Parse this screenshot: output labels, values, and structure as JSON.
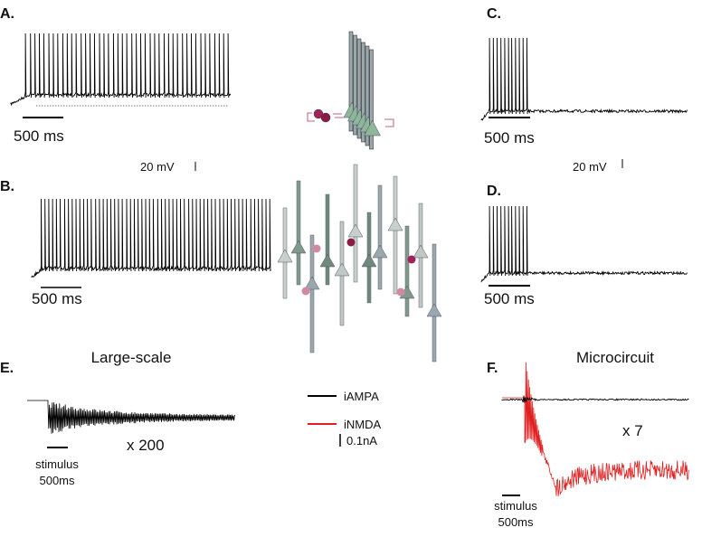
{
  "panels": [
    {
      "label": "A.",
      "scale_time": "500 ms"
    },
    {
      "label": "B.",
      "scale_time": "500 ms"
    },
    {
      "label": "C.",
      "scale_time": "500 ms"
    },
    {
      "label": "D.",
      "scale_time": "500 ms"
    },
    {
      "label": "E.",
      "title": "Large-scale",
      "stimulus": "stimulus",
      "stimulus_time": "500ms",
      "gain": "x 200"
    },
    {
      "label": "F.",
      "title": "Microcircuit",
      "stimulus": "stimulus",
      "stimulus_time": "500ms",
      "gain": "x 7"
    }
  ],
  "voltage_scales": [
    "20 mV",
    "20 mV"
  ],
  "legend": {
    "items": [
      "iAMPA",
      "iNMDA"
    ],
    "current_scale": "0.1nA"
  }
}
